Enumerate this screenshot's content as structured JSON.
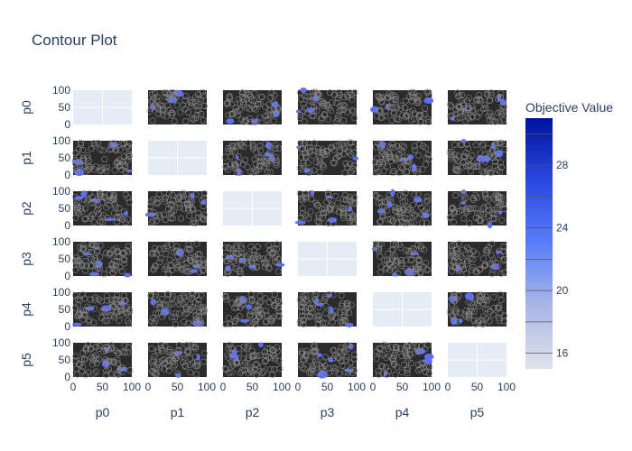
{
  "chart_data": {
    "type": "contour",
    "title": "Contour Plot",
    "params": [
      "p0",
      "p1",
      "p2",
      "p3",
      "p4",
      "p5"
    ],
    "axis_range": [
      0,
      100
    ],
    "xticks": [
      0,
      50,
      100
    ],
    "yticks": [
      0,
      50,
      100
    ],
    "colorbar": {
      "title": "Objective Value",
      "min": 15,
      "max": 31,
      "ticks": [
        16,
        20,
        24,
        28
      ],
      "colors": [
        "#dfe3ea",
        "#aab7e6",
        "#5a7ef8",
        "#2a48e0",
        "#00129c"
      ]
    },
    "cell_colors": {
      "off_diagonal_background": "#2b2b2b",
      "diagonal_background": "#e5ecf6",
      "contour_fill": "#5c6ef5"
    }
  }
}
